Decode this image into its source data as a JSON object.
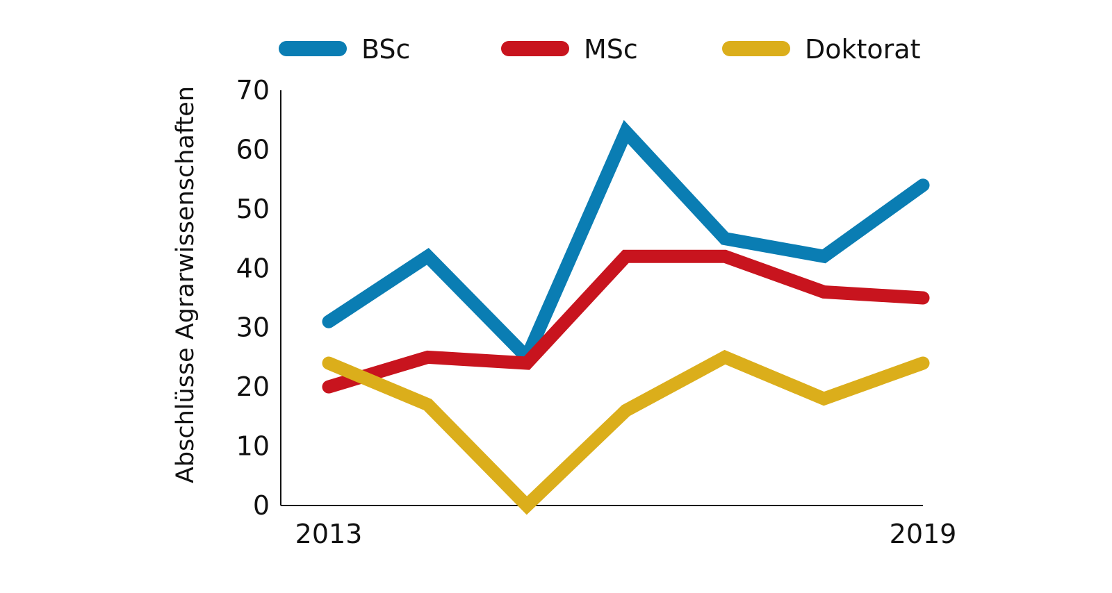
{
  "chart_data": {
    "type": "line",
    "ylabel": "Abschlüsse Agrarwissenschaften",
    "xlabel": "",
    "x": [
      2013,
      2014,
      2015,
      2016,
      2017,
      2018,
      2019
    ],
    "x_tick_labels": [
      "2013",
      "2019"
    ],
    "ylim": [
      0,
      70
    ],
    "y_ticks": [
      0,
      10,
      20,
      30,
      40,
      50,
      60,
      70
    ],
    "grid": false,
    "legend_position": "top",
    "series": [
      {
        "name": "BSc",
        "color": "#0a7db3",
        "values": [
          31,
          42,
          25,
          63,
          45,
          42,
          54
        ]
      },
      {
        "name": "MSc",
        "color": "#c8141e",
        "values": [
          20,
          25,
          24,
          42,
          42,
          36,
          35
        ]
      },
      {
        "name": "Doktorat",
        "color": "#dbae1b",
        "values": [
          24,
          17,
          0,
          16,
          25,
          18,
          24
        ]
      }
    ]
  }
}
